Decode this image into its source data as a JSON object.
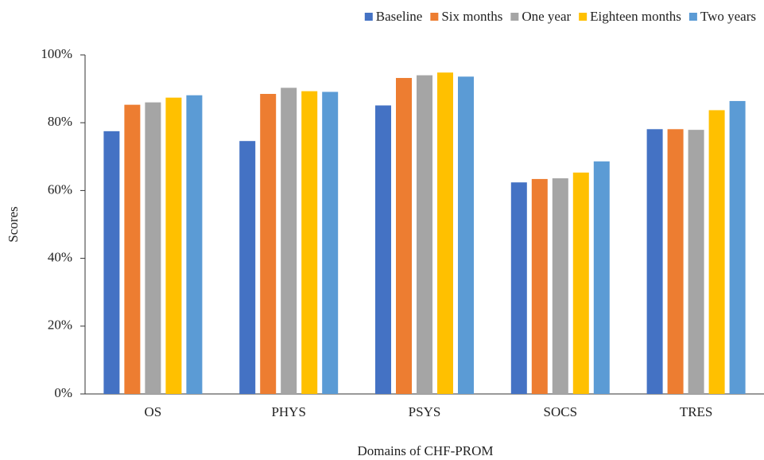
{
  "chart_data": {
    "type": "bar",
    "x_label": "Domains of CHF-PROM",
    "y_label": "Scores",
    "categories": [
      "OS",
      "PHYS",
      "PSYS",
      "SOCS",
      "TRES"
    ],
    "series": [
      {
        "name": "Baseline",
        "color": "#4472c4",
        "values": [
          77.5,
          74.6,
          85.1,
          62.4,
          78.1
        ]
      },
      {
        "name": "Six months",
        "color": "#ed7d31",
        "values": [
          85.3,
          88.5,
          93.2,
          63.4,
          78.1
        ]
      },
      {
        "name": "One year",
        "color": "#a5a5a5",
        "values": [
          86.0,
          90.3,
          94.0,
          63.6,
          77.9
        ]
      },
      {
        "name": "Eighteen months",
        "color": "#ffc000",
        "values": [
          87.4,
          89.3,
          94.8,
          65.3,
          83.7
        ]
      },
      {
        "name": "Two years",
        "color": "#5b9bd5",
        "values": [
          88.1,
          89.1,
          93.6,
          68.6,
          86.4
        ]
      }
    ],
    "ylim": [
      0,
      100
    ],
    "yticks": [
      {
        "value": 0,
        "label": "0%"
      },
      {
        "value": 20,
        "label": "20%"
      },
      {
        "value": 40,
        "label": "40%"
      },
      {
        "value": 60,
        "label": "60%"
      },
      {
        "value": 80,
        "label": "80%"
      },
      {
        "value": 100,
        "label": "100%"
      }
    ],
    "legend": "top-right"
  }
}
